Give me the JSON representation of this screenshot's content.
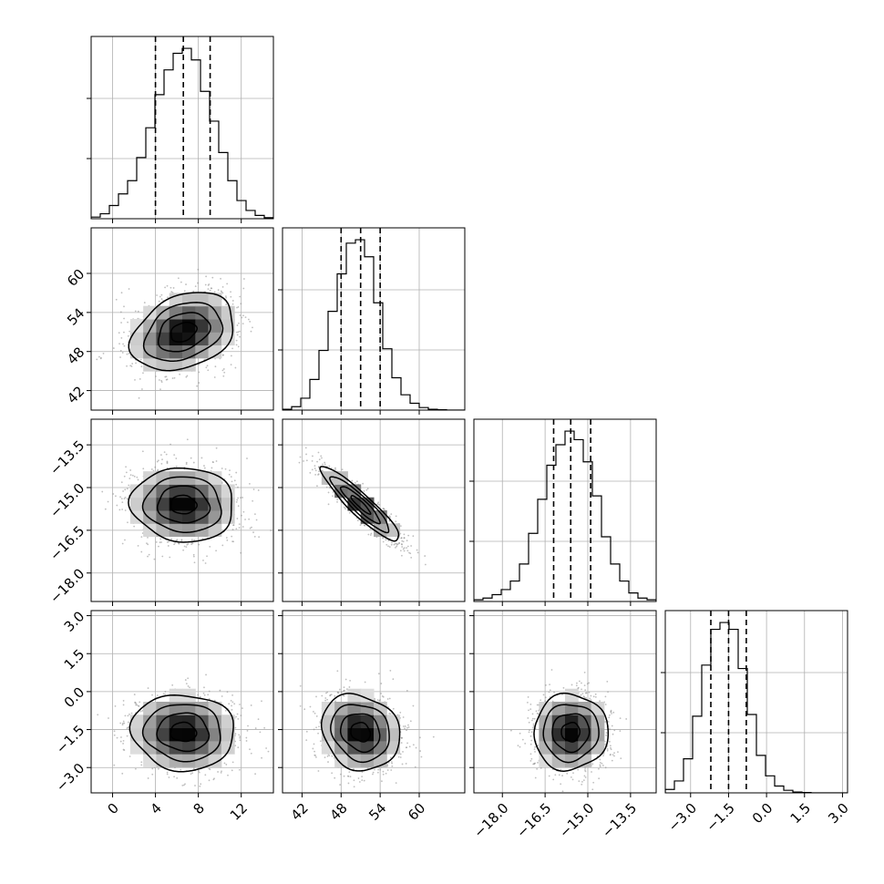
{
  "chart_data": {
    "type": "corner",
    "title": "",
    "params": [
      {
        "range": [
          -2.0,
          15.0
        ],
        "ticks": [
          0,
          4,
          8,
          12
        ],
        "tick_labels": [
          "0",
          "4",
          "8",
          "12"
        ],
        "quantiles": [
          4.0,
          6.6,
          9.1
        ],
        "hist": [
          0.01,
          0.03,
          0.08,
          0.15,
          0.23,
          0.37,
          0.55,
          0.75,
          0.9,
          1.0,
          1.03,
          0.96,
          0.77,
          0.59,
          0.4,
          0.23,
          0.11,
          0.05,
          0.02,
          0.006
        ]
      },
      {
        "range": [
          39.0,
          67.0
        ],
        "ticks": [
          42,
          48,
          54,
          60
        ],
        "tick_labels": [
          "42",
          "48",
          "54",
          "60"
        ],
        "quantiles": [
          48.0,
          51.0,
          54.0
        ],
        "hist": [
          0.005,
          0.02,
          0.07,
          0.18,
          0.35,
          0.58,
          0.8,
          0.98,
          1.0,
          0.9,
          0.63,
          0.36,
          0.19,
          0.09,
          0.04,
          0.015,
          0.005,
          0.002,
          0.0,
          0.0
        ]
      },
      {
        "range": [
          -19.0,
          -12.6
        ],
        "ticks": [
          -18.0,
          -16.5,
          -15.0,
          -13.5
        ],
        "tick_labels": [
          "−18.0",
          "−16.5",
          "−15.0",
          "−13.5"
        ],
        "quantiles": [
          -16.2,
          -15.6,
          -14.9
        ],
        "hist": [
          0.01,
          0.02,
          0.04,
          0.07,
          0.12,
          0.22,
          0.4,
          0.6,
          0.8,
          0.92,
          1.0,
          0.95,
          0.82,
          0.62,
          0.38,
          0.22,
          0.12,
          0.05,
          0.02,
          0.01
        ]
      },
      {
        "range": [
          -4.0,
          3.2
        ],
        "ticks": [
          -3.0,
          -1.5,
          0.0,
          1.5,
          3.0
        ],
        "tick_labels": [
          "−3.0",
          "−1.5",
          "0.0",
          "1.5",
          "3.0"
        ],
        "quantiles": [
          -2.2,
          -1.5,
          -0.8
        ],
        "hist": [
          0.02,
          0.07,
          0.2,
          0.45,
          0.75,
          0.96,
          1.0,
          0.96,
          0.73,
          0.46,
          0.22,
          0.1,
          0.04,
          0.015,
          0.005,
          0.002,
          0.0,
          0.0,
          0.0,
          0.0
        ]
      }
    ],
    "pairs": [
      {
        "row": 1,
        "col": 0,
        "mean": [
          6.6,
          51.0
        ],
        "sd": [
          2.4,
          3.0
        ],
        "rho": 0.3
      },
      {
        "row": 2,
        "col": 0,
        "mean": [
          6.6,
          -15.6
        ],
        "sd": [
          2.4,
          0.65
        ],
        "rho": -0.05
      },
      {
        "row": 2,
        "col": 1,
        "mean": [
          51.0,
          -15.6
        ],
        "sd": [
          3.0,
          0.65
        ],
        "rho": -0.92
      },
      {
        "row": 3,
        "col": 0,
        "mean": [
          6.6,
          -1.6
        ],
        "sd": [
          2.4,
          0.75
        ],
        "rho": -0.05
      },
      {
        "row": 3,
        "col": 1,
        "mean": [
          51.0,
          -1.6
        ],
        "sd": [
          3.0,
          0.75
        ],
        "rho": -0.15
      },
      {
        "row": 3,
        "col": 2,
        "mean": [
          -15.6,
          -1.6
        ],
        "sd": [
          0.65,
          0.75
        ],
        "rho": 0.02
      }
    ],
    "contour_levels_sigma": [
      0.5,
      1.0,
      1.5,
      2.0
    ],
    "grid": true,
    "legend": "none"
  }
}
